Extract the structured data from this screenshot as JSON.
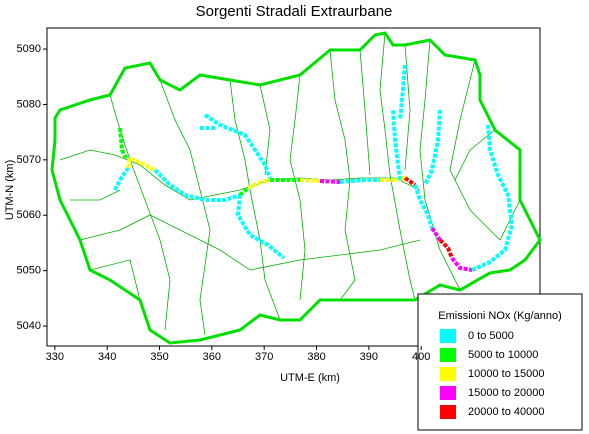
{
  "map": {
    "title": "Sorgenti Stradali Extraurbane",
    "x_label": "UTM-E (km)",
    "y_label": "UTM-N (km)",
    "xlim": [
      328.5,
      422.7
    ],
    "ylim": [
      5036.4,
      5093.8
    ],
    "xticks": [
      330,
      340,
      350,
      360,
      370,
      380,
      390,
      400
    ],
    "yticks": [
      5040,
      5050,
      5060,
      5070,
      5080,
      5090
    ],
    "legend": {
      "title": "Emissioni NOx (Kg/anno)",
      "items": [
        {
          "label": "0 to 5000",
          "color": "#00ffff"
        },
        {
          "label": "5000 to 10000",
          "color": "#00ff00"
        },
        {
          "label": "10000 to 15000",
          "color": "#ffff00"
        },
        {
          "label": "15000 to 20000",
          "color": "#ff00ff"
        },
        {
          "label": "20000 to 40000",
          "color": "#ff0000"
        }
      ]
    }
  }
}
